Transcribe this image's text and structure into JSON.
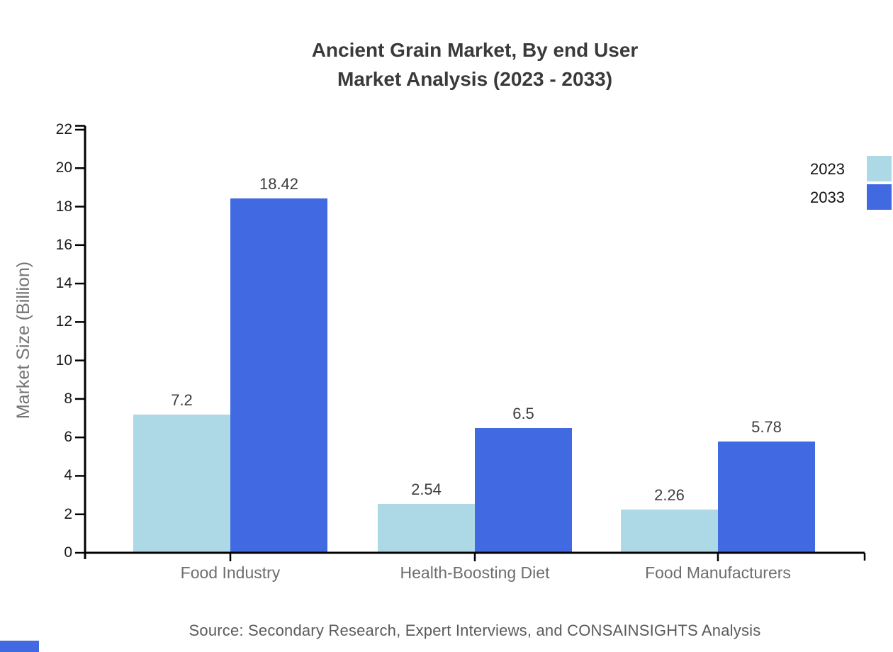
{
  "title": {
    "line1": "Ancient Grain Market, By end User",
    "line2": "Market Analysis (2023 - 2033)"
  },
  "source": "Source: Secondary Research, Expert Interviews, and CONSAINSIGHTS Analysis",
  "chart_data": {
    "type": "bar",
    "title": "Ancient Grain Market, By end User Market Analysis (2023 - 2033)",
    "categories": [
      "Food Industry",
      "Health-Boosting Diet",
      "Food Manufacturers"
    ],
    "series": [
      {
        "name": "2023",
        "color": "#ADD8E6",
        "values": [
          7.2,
          2.54,
          2.26
        ]
      },
      {
        "name": "2033",
        "color": "#4169E1",
        "values": [
          18.42,
          6.5,
          5.78
        ]
      }
    ],
    "xlabel": "",
    "ylabel": "Market Size (Billion)",
    "ylim": [
      0,
      22
    ],
    "ytick_step": 2,
    "grid": false,
    "legend_position": "top-right",
    "axis_color": "#000000"
  },
  "colors": {
    "series_2023": "#ADD8E6",
    "series_2033": "#4169E1",
    "axis": "#000000",
    "title_text": "#3a3a3a",
    "category_text": "#6e6e6e",
    "source_text": "#5a5a5a",
    "watermark": "#4169E1"
  }
}
